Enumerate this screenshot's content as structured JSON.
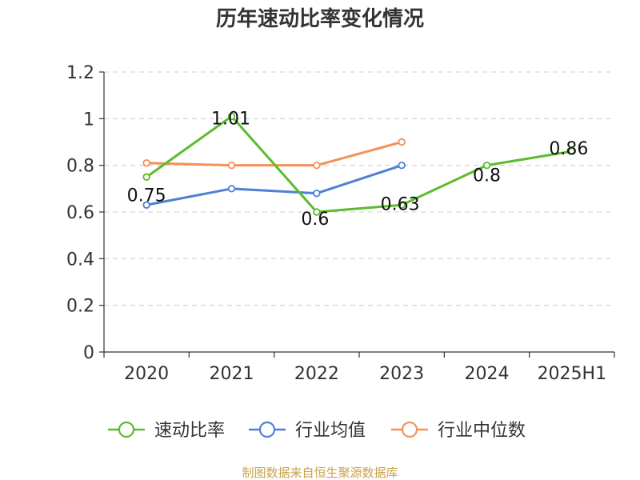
{
  "chart_data": {
    "type": "line",
    "title": "历年速动比率变化情况",
    "xlabel": "",
    "ylabel": "",
    "categories": [
      "2020",
      "2021",
      "2022",
      "2023",
      "2024",
      "2025H1"
    ],
    "y_ticks": [
      "0",
      "0.2",
      "0.4",
      "0.6",
      "0.8",
      "1",
      "1.2"
    ],
    "ylim": [
      0,
      1.2
    ],
    "grid": true,
    "legend_position": "bottom",
    "series": [
      {
        "name": "速动比率",
        "color": "#5dbb2f",
        "values": [
          0.75,
          1.01,
          0.6,
          0.63,
          0.8,
          0.86
        ],
        "labels": [
          "0.75",
          "1.01",
          "0.6",
          "0.63",
          "0.8",
          "0.86"
        ]
      },
      {
        "name": "行业均值",
        "color": "#4f7fd6",
        "values": [
          0.63,
          0.7,
          0.68,
          0.8,
          null,
          null
        ]
      },
      {
        "name": "行业中位数",
        "color": "#f39159",
        "values": [
          0.81,
          0.8,
          0.8,
          0.9,
          null,
          null
        ]
      }
    ]
  },
  "source_text": "制图数据来自恒生聚源数据库"
}
